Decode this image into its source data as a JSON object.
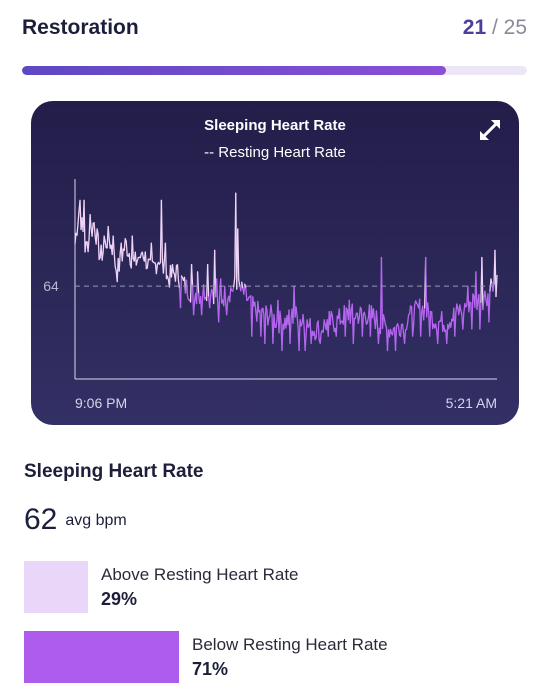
{
  "header": {
    "title": "Restoration",
    "score": "21",
    "score_separator": " / ",
    "score_max": "25",
    "progress_fraction": 0.84
  },
  "chart_data": {
    "type": "line",
    "title": "Sleeping Heart Rate",
    "subtitle": "-- Resting Heart Rate",
    "x_tick_labels": [
      "9:06 PM",
      "5:21 AM"
    ],
    "y_tick_labels": [
      "64"
    ],
    "resting_hr": 64,
    "ylim": [
      51,
      79
    ],
    "threshold_colors": {
      "above": "#efd4f8",
      "below": "#b566f0"
    },
    "x": [
      0,
      1,
      2,
      3,
      4,
      5,
      6,
      7,
      8,
      9,
      10,
      11,
      12,
      13,
      14,
      15,
      16,
      17,
      18,
      19,
      20,
      21,
      22,
      23,
      24,
      25,
      26,
      27,
      28,
      29,
      30,
      31,
      32,
      33,
      34,
      35,
      36,
      37,
      38,
      39,
      40,
      41,
      42,
      43,
      44,
      45,
      46,
      47,
      48,
      49,
      50,
      51,
      52,
      53,
      54,
      55,
      56,
      57,
      58,
      59,
      60,
      61,
      62,
      63,
      64,
      65,
      66,
      67,
      68,
      69,
      70,
      71,
      72,
      73,
      74,
      75,
      76,
      77,
      78,
      79,
      80,
      81,
      82,
      83,
      84,
      85,
      86,
      87,
      88,
      89,
      90,
      91,
      92,
      93,
      94,
      95,
      96,
      97,
      98,
      99,
      100,
      101,
      102,
      103,
      104,
      105,
      106,
      107,
      108,
      109,
      110,
      111,
      112,
      113,
      114,
      115,
      116,
      117,
      118,
      119,
      120,
      121,
      122,
      123,
      124,
      125,
      126,
      127,
      128,
      129,
      130,
      131,
      132,
      133,
      134,
      135,
      136,
      137,
      138,
      139,
      140,
      141,
      142,
      143,
      144,
      145,
      146,
      147,
      148,
      149,
      150,
      151,
      152,
      153,
      154,
      155,
      156,
      157,
      158,
      159,
      160,
      161,
      162,
      163,
      164,
      165,
      166,
      167,
      168,
      169,
      170,
      171,
      172,
      173,
      174,
      175,
      176,
      177,
      178,
      179,
      180,
      181,
      182,
      183,
      184,
      185,
      186,
      187,
      188,
      189,
      190,
      191,
      192,
      193,
      194,
      195,
      196,
      197,
      198,
      199,
      200,
      201,
      202,
      203,
      204,
      205,
      206,
      207,
      208,
      209,
      210,
      211,
      212,
      213,
      214,
      215,
      216,
      217,
      218,
      219,
      220,
      221,
      222,
      223,
      224,
      225,
      226,
      227,
      228,
      229,
      230,
      231,
      232,
      233,
      234,
      235,
      236,
      237,
      238,
      239,
      240,
      241,
      242,
      243,
      244,
      245,
      246,
      247,
      248,
      249,
      250,
      251,
      252,
      253,
      254,
      255,
      256,
      257,
      258,
      259,
      260,
      261,
      262,
      263,
      264,
      265,
      266,
      267,
      268,
      269,
      270,
      271,
      272,
      273,
      274,
      275,
      276,
      277,
      278,
      279,
      280,
      281,
      282,
      283,
      284,
      285,
      286,
      287,
      288,
      289,
      290,
      291,
      292,
      293,
      294,
      295,
      296,
      297,
      298,
      299,
      300,
      301,
      302,
      303,
      304,
      305,
      306,
      307,
      308,
      309,
      310,
      311,
      312,
      313,
      314,
      315,
      316,
      317,
      318,
      319,
      320,
      321,
      322,
      323,
      324,
      325,
      326,
      327,
      328,
      329,
      330,
      331,
      332,
      333,
      334,
      335,
      336,
      337,
      338,
      339,
      340,
      341,
      342,
      343,
      344,
      345,
      346,
      347,
      348,
      349,
      350,
      351,
      352,
      353,
      354,
      355,
      356,
      357,
      358,
      359,
      360,
      361,
      362,
      363,
      364,
      365,
      366,
      367,
      368,
      369,
      370,
      371,
      372,
      373,
      374,
      375,
      376,
      377,
      378,
      379,
      380,
      381,
      382,
      383,
      384,
      385,
      386,
      387,
      388,
      389,
      390,
      391,
      392,
      393,
      394,
      395,
      396,
      397,
      398,
      399,
      400,
      401,
      402,
      403,
      404,
      405,
      406,
      407,
      408,
      409,
      410,
      411,
      412,
      413,
      414,
      415,
      416,
      417,
      418,
      419,
      420,
      421,
      422,
      423,
      424,
      425,
      426,
      427,
      428,
      429,
      430,
      431,
      432,
      433,
      434,
      435,
      436,
      437,
      438,
      439,
      440,
      441,
      442,
      443,
      444,
      445,
      446,
      447,
      448,
      449,
      450,
      451,
      452,
      453,
      454,
      455,
      456,
      457,
      458,
      459,
      460,
      461,
      462,
      463,
      464,
      465,
      466,
      467,
      468,
      469,
      470,
      471,
      472,
      473,
      474,
      475,
      476,
      477,
      478,
      479,
      480,
      481,
      482,
      483,
      484,
      485,
      486,
      487,
      488,
      489,
      490,
      491,
      492,
      493,
      494,
      495,
      496,
      497,
      498,
      499,
      500,
      501,
      502,
      503,
      504,
      505,
      506,
      507,
      508,
      509,
      510,
      511,
      512,
      513,
      514,
      515,
      516,
      517,
      518,
      519,
      520,
      521,
      522,
      523,
      524,
      525,
      526,
      527,
      528,
      529,
      530,
      531,
      532,
      533,
      534,
      535,
      536,
      537,
      538,
      539,
      540,
      541,
      542,
      543,
      544,
      545,
      546,
      547,
      548,
      549,
      550,
      551,
      552,
      553,
      554,
      555,
      556,
      557,
      558,
      559,
      560,
      561,
      562,
      563,
      564,
      565,
      566,
      567,
      568,
      569,
      570,
      571,
      572,
      573,
      574,
      575,
      576,
      577,
      578,
      579,
      580,
      581,
      582,
      583,
      584,
      585,
      586,
      587,
      588,
      589,
      590,
      591,
      592,
      593,
      594,
      595,
      596,
      597,
      598,
      599,
      600,
      601,
      602,
      603,
      604,
      605,
      606,
      607,
      608,
      609,
      610,
      611,
      612,
      613,
      614,
      615,
      616,
      617,
      618,
      619,
      620,
      621,
      622,
      623,
      624,
      625,
      626,
      627,
      628,
      629,
      630,
      631,
      632,
      633,
      634,
      635,
      636,
      637,
      638,
      639,
      640,
      641,
      642,
      643,
      644,
      645,
      646,
      647,
      648,
      649,
      650,
      651,
      652,
      653,
      654,
      655,
      656,
      657,
      658,
      659,
      660,
      661,
      662,
      663,
      664,
      665,
      666,
      667,
      668,
      669,
      670,
      671,
      672,
      673,
      674,
      675,
      676,
      677,
      678,
      679,
      680,
      681,
      682,
      683,
      684,
      685,
      686,
      687,
      688,
      689,
      690,
      691,
      692,
      693,
      694,
      695,
      696,
      697,
      698,
      699,
      700,
      701,
      702,
      703,
      704,
      705,
      706,
      707,
      708,
      709,
      710,
      711,
      712,
      713,
      714,
      715,
      716,
      717,
      718,
      719,
      720,
      721,
      722,
      723,
      724,
      725,
      726,
      727,
      728,
      729,
      730,
      731,
      732,
      733,
      734,
      735,
      736,
      737,
      738,
      739,
      740,
      741,
      742,
      743,
      744,
      745,
      746,
      747,
      748,
      749,
      750,
      751,
      752,
      753,
      754,
      755,
      756,
      757,
      758,
      759,
      760,
      761,
      762,
      763,
      764,
      765,
      766,
      767,
      768,
      769,
      770,
      771,
      772,
      773,
      774,
      775,
      776,
      777,
      778,
      779,
      780,
      781,
      782,
      783,
      784,
      785,
      786,
      787,
      788,
      789,
      790,
      791,
      792,
      793,
      794,
      795,
      796,
      797,
      798,
      799,
      800,
      801,
      802,
      803,
      804,
      805,
      806,
      807,
      808,
      809,
      810,
      811,
      812,
      813,
      814,
      815,
      816,
      817,
      818,
      819,
      820,
      821,
      822,
      823,
      824,
      825,
      826,
      827,
      828,
      829,
      830,
      831,
      832,
      833,
      834,
      835,
      836,
      837,
      838,
      839,
      840,
      841,
      842,
      843,
      844,
      845,
      846,
      847,
      848,
      849,
      850,
      851,
      852,
      853,
      854,
      855,
      856,
      857,
      858,
      859,
      860,
      861,
      862,
      863,
      864,
      865,
      866,
      867,
      868,
      869,
      870,
      871,
      872,
      873,
      874,
      875,
      876,
      877,
      878,
      879,
      880,
      881,
      882,
      883,
      884,
      885,
      886,
      887,
      888,
      889,
      890,
      891,
      892,
      893,
      894,
      895,
      896,
      897,
      898,
      899,
      900,
      901,
      902,
      903,
      904,
      905,
      906,
      907,
      908,
      909,
      910,
      911,
      912,
      913,
      914,
      915,
      916,
      917,
      918,
      919,
      920,
      921,
      922,
      923,
      924,
      925,
      926,
      927,
      928,
      929,
      930,
      931,
      932,
      933,
      934,
      935,
      936,
      937,
      938,
      939,
      940,
      941,
      942,
      943,
      944,
      945,
      946,
      947,
      948,
      949,
      950,
      951,
      952,
      953,
      954,
      955,
      956,
      957,
      958,
      959,
      960,
      961,
      962,
      963,
      964,
      965,
      966,
      967,
      968,
      969,
      970,
      971,
      972,
      973,
      974,
      975,
      976,
      977,
      978,
      979,
      980,
      981,
      982,
      983,
      984,
      985,
      986,
      987,
      988,
      989,
      990,
      991,
      992,
      993,
      994,
      995,
      996,
      997,
      998,
      999,
      1000
    ],
    "anchors": [
      [
        0,
        70
      ],
      [
        10,
        75
      ],
      [
        25,
        69
      ],
      [
        45,
        73
      ],
      [
        60,
        68
      ],
      [
        80,
        71
      ],
      [
        100,
        66
      ],
      [
        120,
        70
      ],
      [
        140,
        67
      ],
      [
        160,
        69
      ],
      [
        180,
        66
      ],
      [
        200,
        68
      ],
      [
        220,
        65
      ],
      [
        240,
        66
      ],
      [
        260,
        64
      ],
      [
        280,
        63
      ],
      [
        300,
        63
      ],
      [
        320,
        64
      ],
      [
        340,
        62
      ],
      [
        360,
        63
      ],
      [
        380,
        64
      ],
      [
        400,
        63
      ],
      [
        420,
        61
      ],
      [
        440,
        60
      ],
      [
        460,
        60
      ],
      [
        480,
        59
      ],
      [
        500,
        59
      ],
      [
        520,
        60
      ],
      [
        540,
        59
      ],
      [
        560,
        58
      ],
      [
        580,
        58
      ],
      [
        600,
        59
      ],
      [
        620,
        59
      ],
      [
        640,
        60
      ],
      [
        660,
        60
      ],
      [
        680,
        60
      ],
      [
        700,
        60
      ],
      [
        720,
        59
      ],
      [
        740,
        58
      ],
      [
        760,
        58
      ],
      [
        780,
        59
      ],
      [
        800,
        60
      ],
      [
        820,
        61
      ],
      [
        840,
        60
      ],
      [
        860,
        59
      ],
      [
        880,
        59
      ],
      [
        900,
        60
      ],
      [
        920,
        61
      ],
      [
        940,
        62
      ],
      [
        960,
        62
      ],
      [
        980,
        63
      ],
      [
        1000,
        64
      ]
    ],
    "spikes": [
      [
        13,
        76
      ],
      [
        22,
        76
      ],
      [
        35,
        74
      ],
      [
        52,
        72
      ],
      [
        70,
        71
      ],
      [
        90,
        71
      ],
      [
        110,
        70
      ],
      [
        135,
        71
      ],
      [
        155,
        68
      ],
      [
        180,
        70
      ],
      [
        196,
        67
      ],
      [
        205,
        76
      ],
      [
        215,
        70
      ],
      [
        230,
        67
      ],
      [
        250,
        69
      ],
      [
        275,
        67
      ],
      [
        290,
        66
      ],
      [
        300,
        66
      ],
      [
        315,
        67
      ],
      [
        330,
        69
      ],
      [
        335,
        65
      ],
      [
        345,
        65
      ],
      [
        380,
        77
      ],
      [
        385,
        72
      ],
      [
        420,
        64
      ],
      [
        450,
        62
      ],
      [
        470,
        63
      ],
      [
        480,
        62
      ],
      [
        520,
        64
      ],
      [
        540,
        60
      ],
      [
        560,
        61
      ],
      [
        600,
        63
      ],
      [
        620,
        61
      ],
      [
        650,
        62
      ],
      [
        680,
        63
      ],
      [
        720,
        69
      ],
      [
        727,
        68
      ],
      [
        740,
        62
      ],
      [
        760,
        61
      ],
      [
        790,
        60
      ],
      [
        820,
        62
      ],
      [
        830,
        68
      ],
      [
        840,
        62
      ],
      [
        860,
        65
      ],
      [
        880,
        66
      ],
      [
        900,
        62
      ],
      [
        930,
        64
      ],
      [
        950,
        66
      ],
      [
        965,
        68
      ],
      [
        985,
        65
      ],
      [
        995,
        69
      ]
    ],
    "dips": [
      [
        250,
        61
      ],
      [
        280,
        60
      ],
      [
        300,
        60
      ],
      [
        320,
        61
      ],
      [
        340,
        59
      ],
      [
        360,
        60
      ],
      [
        420,
        57
      ],
      [
        440,
        57
      ],
      [
        450,
        56
      ],
      [
        470,
        56
      ],
      [
        490,
        55
      ],
      [
        510,
        56
      ],
      [
        530,
        55
      ],
      [
        545,
        55
      ],
      [
        560,
        56
      ],
      [
        580,
        56
      ],
      [
        600,
        57
      ],
      [
        620,
        57
      ],
      [
        640,
        57
      ],
      [
        660,
        56
      ],
      [
        680,
        57
      ],
      [
        700,
        57
      ],
      [
        720,
        56
      ],
      [
        740,
        55
      ],
      [
        760,
        55
      ],
      [
        780,
        56
      ],
      [
        800,
        57
      ],
      [
        820,
        57
      ],
      [
        840,
        57
      ],
      [
        860,
        56
      ],
      [
        880,
        56
      ],
      [
        900,
        57
      ],
      [
        920,
        58
      ],
      [
        940,
        58
      ],
      [
        960,
        58
      ],
      [
        980,
        59
      ]
    ]
  },
  "summary": {
    "title": "Sleeping Heart Rate",
    "avg_value": "62",
    "avg_unit": "avg bpm",
    "above": {
      "label": "Above Resting Heart Rate",
      "percent_text": "29%",
      "fraction": 0.29,
      "color": "#e9d6f8"
    },
    "below": {
      "label": "Below Resting Heart Rate",
      "percent_text": "71%",
      "fraction": 0.71,
      "color": "#ae5cec"
    }
  }
}
